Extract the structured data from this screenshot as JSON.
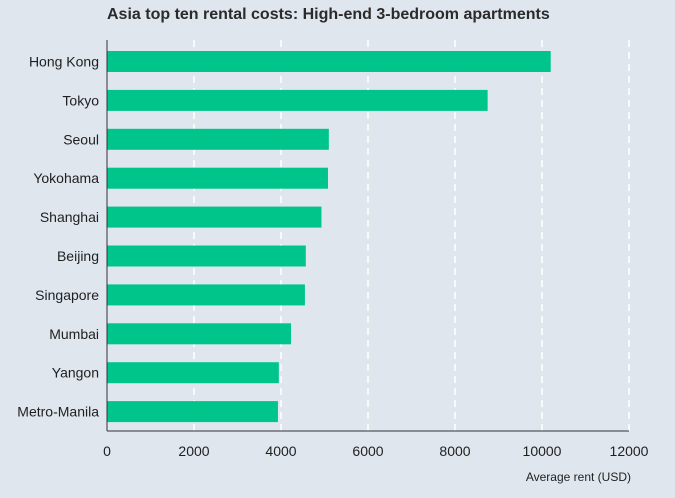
{
  "chart_data": {
    "type": "bar",
    "orientation": "horizontal",
    "title": "Asia top ten rental costs: High-end 3-bedroom apartments",
    "xlabel": "Average rent (USD)",
    "ylabel": "",
    "categories": [
      "Hong Kong",
      "Tokyo",
      "Seoul",
      "Yokohama",
      "Shanghai",
      "Beijing",
      "Singapore",
      "Mumbai",
      "Yangon",
      "Metro-Manila"
    ],
    "values": [
      10200,
      8750,
      5100,
      5080,
      4930,
      4570,
      4550,
      4230,
      3950,
      3930
    ],
    "xlim": [
      0,
      12000
    ],
    "xticks": [
      0,
      2000,
      4000,
      6000,
      8000,
      10000,
      12000
    ],
    "grid": "vertical-dashed",
    "legend": "none",
    "colors": {
      "bar": "#00c58b",
      "grid": "#ffffff",
      "axis": "#333333",
      "background": "#dfe6ee"
    }
  }
}
